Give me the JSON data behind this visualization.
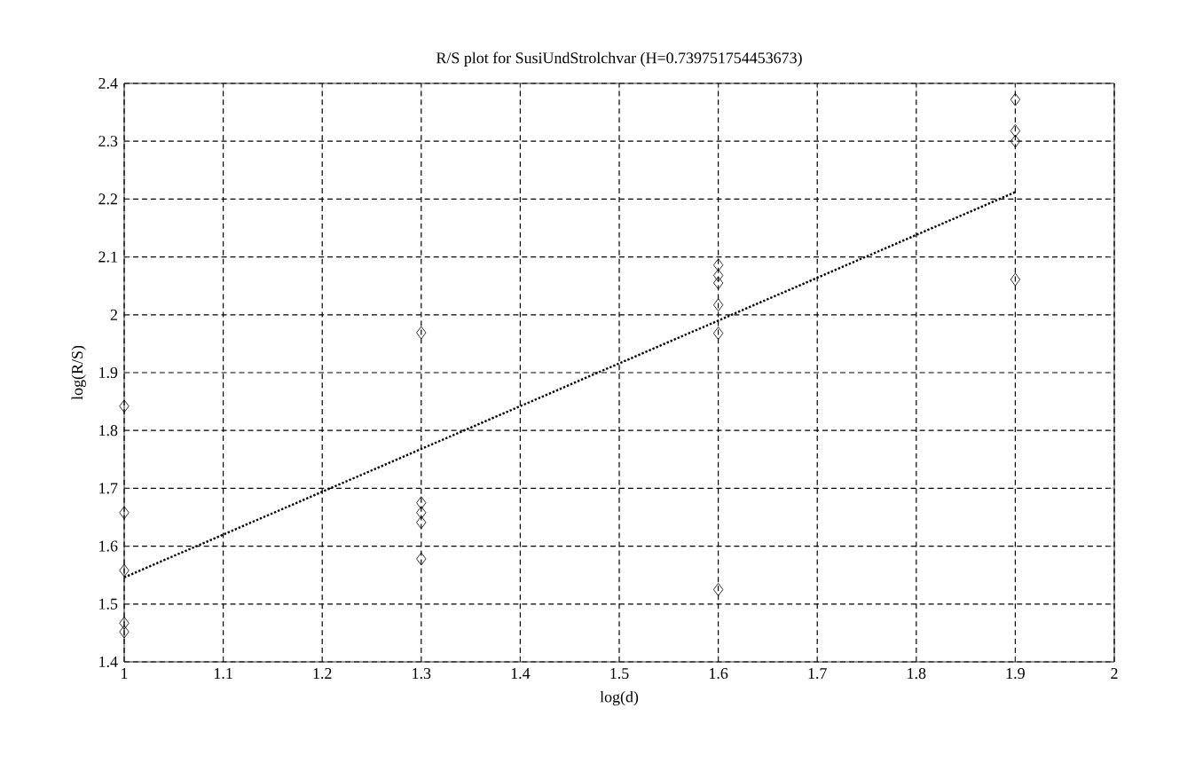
{
  "chart_data": {
    "type": "scatter",
    "title": "R/S plot for SusiUndStrolchvar (H=0.739751754453673)",
    "xlabel": "log(d)",
    "ylabel": "log(R/S)",
    "xlim": [
      1,
      2
    ],
    "ylim": [
      1.4,
      2.4
    ],
    "xticks": [
      1,
      1.1,
      1.2,
      1.3,
      1.4,
      1.5,
      1.6,
      1.7,
      1.8,
      1.9,
      2
    ],
    "yticks": [
      1.4,
      1.5,
      1.6,
      1.7,
      1.8,
      1.9,
      2,
      2.1,
      2.2,
      2.3,
      2.4
    ],
    "grid": true,
    "series": [
      {
        "marker": "diamond",
        "color": "#000000",
        "x": [
          1,
          1,
          1,
          1,
          1,
          1.3,
          1.3,
          1.3,
          1.3,
          1.3,
          1.6,
          1.6,
          1.6,
          1.6,
          1.6,
          1.6,
          1.9,
          1.9,
          1.9,
          1.9
        ],
        "values": [
          1.842,
          1.658,
          1.558,
          1.467,
          1.452,
          1.969,
          1.675,
          1.658,
          1.641,
          1.578,
          2.086,
          2.068,
          2.055,
          2.017,
          1.968,
          1.525,
          2.372,
          2.318,
          2.3,
          2.061
        ]
      },
      {
        "type": "line",
        "line_style": "dotted",
        "marker": "none",
        "color": "#000000",
        "x": [
          1,
          1.9
        ],
        "values": [
          1.546,
          2.212
        ]
      }
    ]
  }
}
